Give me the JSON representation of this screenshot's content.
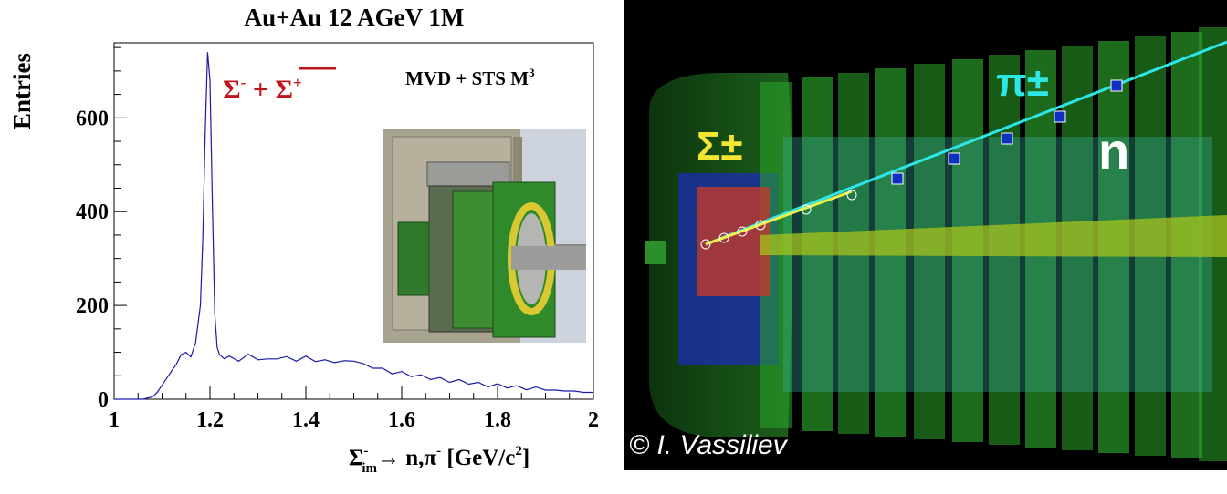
{
  "chart_data": {
    "type": "line",
    "title": "Au+Au 12 AGeV 1M",
    "ylabel": "Entries",
    "xlabel_parts": {
      "sigma": "Σ",
      "sup": "-",
      "sub": "im",
      "rest": "→ n,π",
      "sup2": "-",
      "units": " [GeV/c",
      "sup3": "2",
      "close": "]"
    },
    "xlim": [
      1,
      2
    ],
    "ylim": [
      0,
      760
    ],
    "xticks": [
      "1",
      "1.2",
      "1.4",
      "1.6",
      "1.8",
      "2"
    ],
    "yticks": [
      "0",
      "200",
      "400",
      "600"
    ],
    "annotation_left": {
      "s1": "Σ",
      "s1sup": "-",
      "plus": " + ",
      "s2": "Σ",
      "s2sup": "+"
    },
    "annotation_right": {
      "text": "MVD + STS M",
      "sup": "3"
    },
    "line_color": "#1a1aa6",
    "annotation_color": "#c0141c",
    "series": [
      {
        "x": [
          1.0,
          1.02,
          1.04,
          1.06,
          1.08,
          1.09,
          1.1,
          1.11,
          1.12,
          1.13,
          1.14,
          1.15,
          1.16,
          1.17,
          1.18,
          1.185,
          1.19,
          1.195,
          1.2,
          1.205,
          1.21,
          1.215,
          1.22,
          1.23,
          1.24,
          1.26,
          1.28,
          1.3,
          1.32,
          1.34,
          1.36,
          1.38,
          1.4,
          1.42,
          1.44,
          1.46,
          1.48,
          1.5,
          1.52,
          1.54,
          1.56,
          1.58,
          1.6,
          1.62,
          1.64,
          1.66,
          1.68,
          1.7,
          1.72,
          1.74,
          1.76,
          1.78,
          1.8,
          1.82,
          1.84,
          1.86,
          1.88,
          1.9,
          1.92,
          1.94,
          1.96,
          1.98,
          2.0
        ],
        "y": [
          0,
          0,
          0,
          0,
          5,
          15,
          30,
          45,
          60,
          75,
          95,
          100,
          90,
          120,
          200,
          340,
          560,
          740,
          680,
          420,
          180,
          110,
          95,
          90,
          88,
          85,
          92,
          88,
          82,
          90,
          87,
          85,
          88,
          84,
          80,
          82,
          78,
          85,
          72,
          70,
          62,
          58,
          55,
          52,
          48,
          46,
          42,
          40,
          38,
          36,
          32,
          30,
          29,
          28,
          25,
          24,
          22,
          20,
          19,
          18,
          17,
          15,
          14
        ]
      }
    ]
  },
  "event_display": {
    "label_sigma": "Σ±",
    "label_pion": "π±",
    "label_neutron": "n",
    "credit": "© I. Vassiliev"
  }
}
